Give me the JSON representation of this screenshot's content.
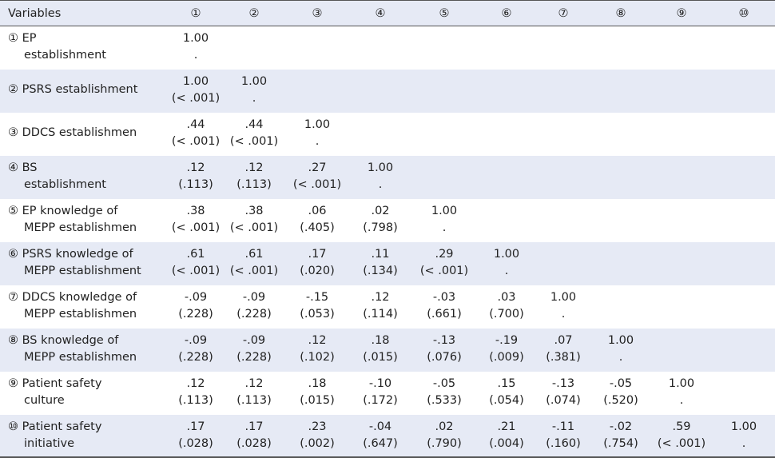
{
  "table": {
    "header": [
      "Variables",
      "①",
      "②",
      "③",
      "④",
      "⑤",
      "⑥",
      "⑦",
      "⑧",
      "⑨",
      "⑩"
    ],
    "rows": [
      {
        "label": [
          "① EP",
          "establishment"
        ],
        "cells": [
          [
            "1.00",
            "."
          ]
        ]
      },
      {
        "label": [
          "② PSRS establishment"
        ],
        "cells": [
          [
            "1.00",
            "(< .001)"
          ],
          [
            "1.00",
            "."
          ]
        ]
      },
      {
        "label": [
          "③ DDCS establishmen"
        ],
        "cells": [
          [
            ".44",
            "(< .001)"
          ],
          [
            ".44",
            "(< .001)"
          ],
          [
            "1.00",
            "."
          ]
        ]
      },
      {
        "label": [
          "④ BS",
          "establishment"
        ],
        "cells": [
          [
            ".12",
            "(.113)"
          ],
          [
            ".12",
            "(.113)"
          ],
          [
            ".27",
            "(< .001)"
          ],
          [
            "1.00",
            "."
          ]
        ]
      },
      {
        "label": [
          "⑤ EP knowledge of",
          "MEPP establishmen"
        ],
        "cells": [
          [
            ".38",
            "(< .001)"
          ],
          [
            ".38",
            "(< .001)"
          ],
          [
            ".06",
            "(.405)"
          ],
          [
            ".02",
            "(.798)"
          ],
          [
            "1.00",
            "."
          ]
        ]
      },
      {
        "label": [
          "⑥ PSRS knowledge of",
          "MEPP establishment"
        ],
        "cells": [
          [
            ".61",
            "(< .001)"
          ],
          [
            ".61",
            "(< .001)"
          ],
          [
            ".17",
            "(.020)"
          ],
          [
            ".11",
            "(.134)"
          ],
          [
            ".29",
            "(< .001)"
          ],
          [
            "1.00",
            "."
          ]
        ]
      },
      {
        "label": [
          "⑦ DDCS knowledge of",
          "MEPP establishmen"
        ],
        "cells": [
          [
            "-.09",
            "(.228)"
          ],
          [
            "-.09",
            "(.228)"
          ],
          [
            "-.15",
            "(.053)"
          ],
          [
            ".12",
            "(.114)"
          ],
          [
            "-.03",
            "(.661)"
          ],
          [
            ".03",
            "(.700)"
          ],
          [
            "1.00",
            "."
          ]
        ]
      },
      {
        "label": [
          "⑧ BS knowledge of",
          "MEPP establishmen"
        ],
        "cells": [
          [
            "-.09",
            "(.228)"
          ],
          [
            "-.09",
            "(.228)"
          ],
          [
            ".12",
            "(.102)"
          ],
          [
            ".18",
            "(.015)"
          ],
          [
            "-.13",
            "(.076)"
          ],
          [
            "-.19",
            "(.009)"
          ],
          [
            ".07",
            "(.381)"
          ],
          [
            "1.00",
            "."
          ]
        ]
      },
      {
        "label": [
          "⑨ Patient safety",
          "culture"
        ],
        "cells": [
          [
            ".12",
            "(.113)"
          ],
          [
            ".12",
            "(.113)"
          ],
          [
            ".18",
            "(.015)"
          ],
          [
            "-.10",
            "(.172)"
          ],
          [
            "-.05",
            "(.533)"
          ],
          [
            ".15",
            "(.054)"
          ],
          [
            "-.13",
            "(.074)"
          ],
          [
            "-.05",
            "(.520)"
          ],
          [
            "1.00",
            "."
          ]
        ]
      },
      {
        "label": [
          "⑩ Patient safety",
          "initiative"
        ],
        "cells": [
          [
            ".17",
            "(.028)"
          ],
          [
            ".17",
            "(.028)"
          ],
          [
            ".23",
            "(.002)"
          ],
          [
            "-.04",
            "(.647)"
          ],
          [
            ".02",
            "(.790)"
          ],
          [
            ".21",
            "(.004)"
          ],
          [
            "-.11",
            "(.160)"
          ],
          [
            "-.02",
            "(.754)"
          ],
          [
            ".59",
            "(< .001)"
          ],
          [
            "1.00",
            "."
          ]
        ]
      }
    ]
  }
}
